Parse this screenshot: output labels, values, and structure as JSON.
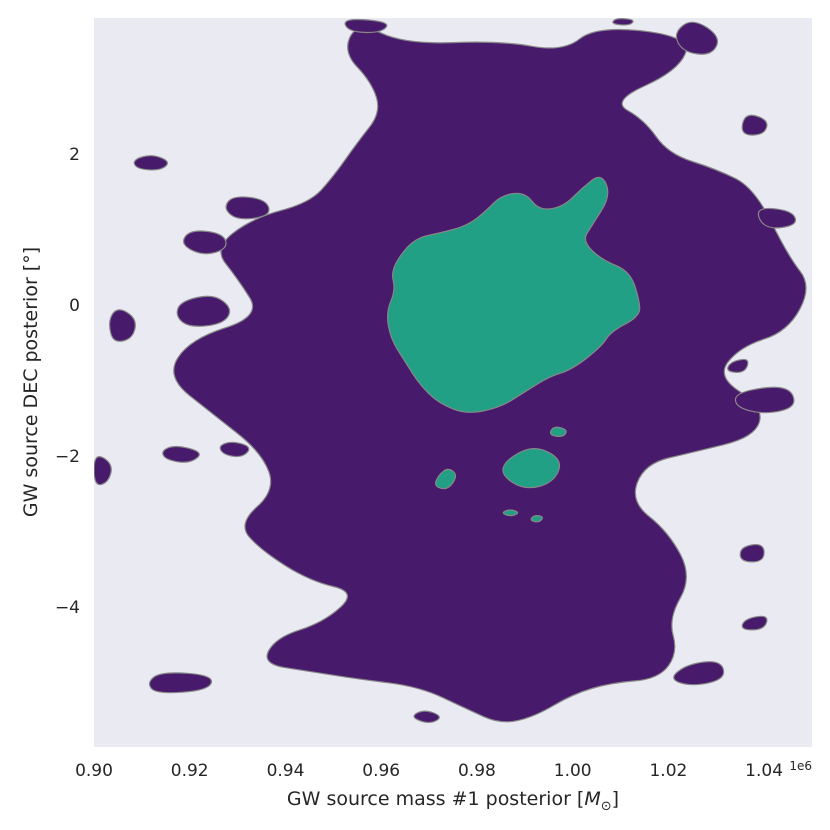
{
  "chart_data": {
    "type": "contour",
    "xlabel_text": "GW source mass #1 posterior [",
    "xlabel_math": "M",
    "xlabel_sub": "⊙",
    "xlabel_end": "]",
    "ylabel": "GW source DEC posterior [°]",
    "x_offset_text": "1e6",
    "xlim": [
      0.9,
      1.05
    ],
    "ylim": [
      -5.85,
      3.8
    ],
    "x_ticks": [
      0.9,
      0.92,
      0.94,
      0.96,
      0.98,
      1.0,
      1.02,
      1.04
    ],
    "x_tick_labels": [
      "0.90",
      "0.92",
      "0.94",
      "0.96",
      "0.98",
      "1.00",
      "1.02",
      "1.04"
    ],
    "y_ticks": [
      2,
      0,
      -2,
      -4
    ],
    "y_tick_labels": [
      "2",
      "0",
      "−2",
      "−4"
    ],
    "grid": false,
    "colors": {
      "background": "#eaeaf2",
      "outer_level": "#481a6c",
      "inner_level": "#21a086",
      "edge": "#888888"
    },
    "levels": [
      {
        "name": "outer",
        "color": "#481a6c",
        "regions": [
          [
            [
              0.955,
              3.75
            ],
            [
              0.965,
              3.45
            ],
            [
              0.985,
              3.5
            ],
            [
              0.998,
              3.35
            ],
            [
              1.005,
              3.7
            ],
            [
              1.025,
              3.55
            ],
            [
              1.022,
              3.1
            ],
            [
              1.008,
              2.7
            ],
            [
              1.015,
              2.45
            ],
            [
              1.02,
              2.0
            ],
            [
              1.03,
              1.8
            ],
            [
              1.038,
              1.55
            ],
            [
              1.045,
              0.65
            ],
            [
              1.05,
              0.25
            ],
            [
              1.045,
              -0.35
            ],
            [
              1.035,
              -0.55
            ],
            [
              1.03,
              -0.95
            ],
            [
              1.04,
              -1.35
            ],
            [
              1.038,
              -1.75
            ],
            [
              1.025,
              -1.95
            ],
            [
              1.015,
              -2.1
            ],
            [
              1.012,
              -2.6
            ],
            [
              1.02,
              -3.0
            ],
            [
              1.025,
              -3.6
            ],
            [
              1.02,
              -4.15
            ],
            [
              1.022,
              -4.6
            ],
            [
              1.018,
              -4.95
            ],
            [
              1.008,
              -5.0
            ],
            [
              1.0,
              -5.15
            ],
            [
              0.992,
              -5.45
            ],
            [
              0.985,
              -5.55
            ],
            [
              0.978,
              -5.35
            ],
            [
              0.968,
              -5.05
            ],
            [
              0.955,
              -4.95
            ],
            [
              0.945,
              -4.85
            ],
            [
              0.935,
              -4.75
            ],
            [
              0.938,
              -4.4
            ],
            [
              0.948,
              -4.2
            ],
            [
              0.955,
              -3.8
            ],
            [
              0.945,
              -3.65
            ],
            [
              0.935,
              -3.25
            ],
            [
              0.93,
              -2.9
            ],
            [
              0.938,
              -2.45
            ],
            [
              0.935,
              -1.95
            ],
            [
              0.925,
              -1.45
            ],
            [
              0.915,
              -0.95
            ],
            [
              0.92,
              -0.45
            ],
            [
              0.935,
              -0.15
            ],
            [
              0.93,
              0.35
            ],
            [
              0.925,
              0.75
            ],
            [
              0.933,
              1.15
            ],
            [
              0.945,
              1.35
            ],
            [
              0.95,
              1.7
            ],
            [
              0.955,
              2.15
            ],
            [
              0.96,
              2.55
            ],
            [
              0.958,
              2.95
            ],
            [
              0.952,
              3.35
            ]
          ],
          [
            [
              0.912,
              2.0
            ],
            [
              0.916,
              1.9
            ],
            [
              0.914,
              1.78
            ],
            [
              0.909,
              1.8
            ],
            [
              0.908,
              1.92
            ]
          ],
          [
            [
              0.906,
              -0.05
            ],
            [
              0.909,
              -0.2
            ],
            [
              0.908,
              -0.45
            ],
            [
              0.904,
              -0.5
            ],
            [
              0.903,
              -0.25
            ],
            [
              0.904,
              -0.08
            ]
          ],
          [
            [
              0.918,
              0.05
            ],
            [
              0.925,
              0.15
            ],
            [
              0.929,
              -0.05
            ],
            [
              0.927,
              -0.25
            ],
            [
              0.92,
              -0.3
            ],
            [
              0.917,
              -0.15
            ]
          ],
          [
            [
              0.92,
              1.0
            ],
            [
              0.927,
              0.95
            ],
            [
              0.928,
              0.75
            ],
            [
              0.923,
              0.65
            ],
            [
              0.918,
              0.8
            ]
          ],
          [
            [
              0.929,
              1.45
            ],
            [
              0.936,
              1.4
            ],
            [
              0.937,
              1.18
            ],
            [
              0.93,
              1.12
            ],
            [
              0.927,
              1.28
            ]
          ],
          [
            [
              0.9,
              -1.95
            ],
            [
              0.904,
              -2.1
            ],
            [
              0.903,
              -2.35
            ],
            [
              0.9,
              -2.4
            ]
          ],
          [
            [
              0.917,
              -1.85
            ],
            [
              0.923,
              -1.95
            ],
            [
              0.92,
              -2.1
            ],
            [
              0.915,
              -2.05
            ],
            [
              0.914,
              -1.93
            ]
          ],
          [
            [
              0.929,
              -1.8
            ],
            [
              0.933,
              -1.88
            ],
            [
              0.931,
              -2.02
            ],
            [
              0.927,
              -1.98
            ],
            [
              0.926,
              -1.86
            ]
          ],
          [
            [
              0.925,
              -4.9
            ],
            [
              0.914,
              -4.85
            ],
            [
              0.911,
              -5.0
            ],
            [
              0.913,
              -5.15
            ],
            [
              0.924,
              -5.1
            ]
          ],
          [
            [
              0.969,
              -5.35
            ],
            [
              0.973,
              -5.45
            ],
            [
              0.97,
              -5.55
            ],
            [
              0.966,
              -5.45
            ]
          ],
          [
            [
              1.024,
              -4.75
            ],
            [
              1.031,
              -4.7
            ],
            [
              1.032,
              -4.95
            ],
            [
              1.025,
              -5.05
            ],
            [
              1.02,
              -4.95
            ]
          ],
          [
            [
              1.034,
              -1.15
            ],
            [
              1.045,
              -1.05
            ],
            [
              1.047,
              -1.35
            ],
            [
              1.04,
              -1.45
            ],
            [
              1.034,
              -1.35
            ]
          ],
          [
            [
              1.035,
              -3.2
            ],
            [
              1.04,
              -3.15
            ],
            [
              1.04,
              -3.4
            ],
            [
              1.035,
              -3.4
            ]
          ],
          [
            [
              1.036,
              -4.15
            ],
            [
              1.041,
              -4.1
            ],
            [
              1.04,
              -4.3
            ],
            [
              1.035,
              -4.3
            ]
          ],
          [
            [
              1.033,
              -0.75
            ],
            [
              1.037,
              -0.7
            ],
            [
              1.036,
              -0.9
            ],
            [
              1.032,
              -0.88
            ]
          ],
          [
            [
              1.036,
              2.55
            ],
            [
              1.041,
              2.45
            ],
            [
              1.04,
              2.25
            ],
            [
              1.035,
              2.25
            ]
          ],
          [
            [
              1.038,
              1.3
            ],
            [
              1.046,
              1.25
            ],
            [
              1.047,
              1.05
            ],
            [
              1.04,
              1.0
            ]
          ],
          [
            [
              1.025,
              3.8
            ],
            [
              1.031,
              3.55
            ],
            [
              1.029,
              3.3
            ],
            [
              1.023,
              3.35
            ],
            [
              1.021,
              3.6
            ]
          ],
          [
            [
              0.952,
              3.8
            ],
            [
              0.962,
              3.75
            ],
            [
              0.96,
              3.6
            ],
            [
              0.953,
              3.62
            ]
          ],
          [
            [
              1.009,
              3.8
            ],
            [
              1.013,
              3.78
            ],
            [
              1.012,
              3.7
            ],
            [
              1.008,
              3.72
            ]
          ],
          [
            [
              0.895,
              -2.05
            ],
            [
              0.9,
              -1.95
            ],
            [
              0.9,
              -2.4
            ],
            [
              0.895,
              -2.35
            ]
          ]
        ]
      },
      {
        "name": "inner",
        "color": "#21a086",
        "regions": [
          [
            [
              0.99,
              1.5
            ],
            [
              0.993,
              1.25
            ],
            [
              0.998,
              1.3
            ],
            [
              1.002,
              1.55
            ],
            [
              1.006,
              1.75
            ],
            [
              1.008,
              1.45
            ],
            [
              1.004,
              1.05
            ],
            [
              1.002,
              0.85
            ],
            [
              1.006,
              0.6
            ],
            [
              1.012,
              0.45
            ],
            [
              1.014,
              0.05
            ],
            [
              1.014,
              -0.15
            ],
            [
              1.008,
              -0.35
            ],
            [
              1.006,
              -0.55
            ],
            [
              1.0,
              -0.85
            ],
            [
              0.995,
              -0.95
            ],
            [
              0.99,
              -1.15
            ],
            [
              0.985,
              -1.35
            ],
            [
              0.978,
              -1.45
            ],
            [
              0.972,
              -1.3
            ],
            [
              0.968,
              -1.05
            ],
            [
              0.965,
              -0.75
            ],
            [
              0.962,
              -0.45
            ],
            [
              0.961,
              -0.1
            ],
            [
              0.963,
              0.2
            ],
            [
              0.962,
              0.45
            ],
            [
              0.965,
              0.75
            ],
            [
              0.968,
              0.9
            ],
            [
              0.972,
              0.95
            ],
            [
              0.978,
              1.05
            ],
            [
              0.982,
              1.25
            ],
            [
              0.985,
              1.45
            ]
          ],
          [
            [
              0.992,
              -1.85
            ],
            [
              0.998,
              -2.05
            ],
            [
              0.996,
              -2.35
            ],
            [
              0.99,
              -2.45
            ],
            [
              0.985,
              -2.25
            ],
            [
              0.986,
              -2.05
            ]
          ],
          [
            [
              0.996,
              -1.6
            ],
            [
              0.999,
              -1.65
            ],
            [
              0.998,
              -1.75
            ],
            [
              0.995,
              -1.72
            ]
          ],
          [
            [
              0.974,
              -2.15
            ],
            [
              0.976,
              -2.25
            ],
            [
              0.974,
              -2.45
            ],
            [
              0.971,
              -2.4
            ],
            [
              0.972,
              -2.25
            ]
          ],
          [
            [
              0.987,
              -2.7
            ],
            [
              0.989,
              -2.75
            ],
            [
              0.987,
              -2.8
            ],
            [
              0.985,
              -2.75
            ]
          ],
          [
            [
              0.992,
              -2.78
            ],
            [
              0.994,
              -2.8
            ],
            [
              0.993,
              -2.88
            ],
            [
              0.991,
              -2.85
            ]
          ]
        ]
      }
    ]
  }
}
